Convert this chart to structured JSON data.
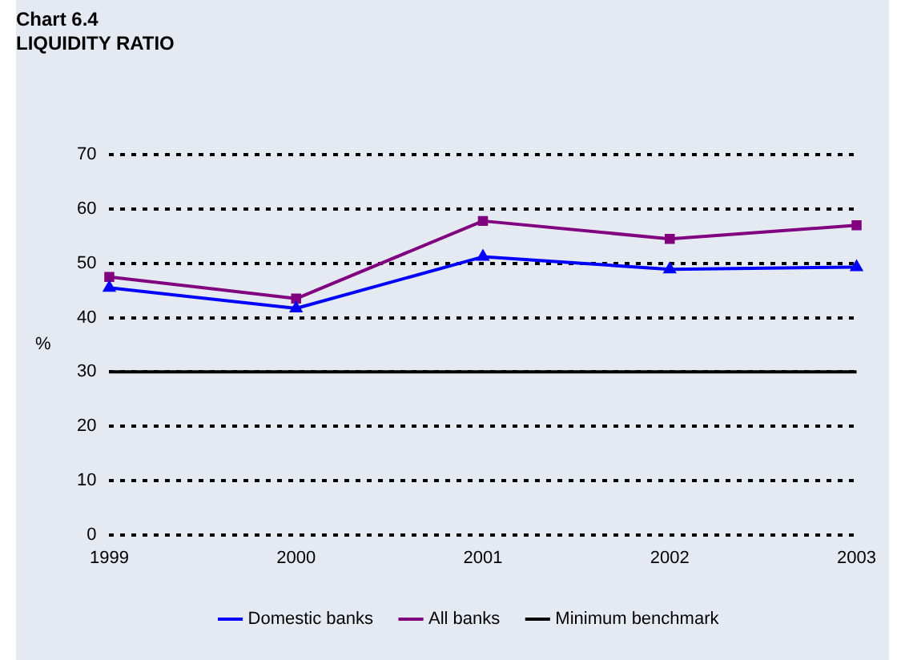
{
  "chart_data": {
    "type": "line",
    "title": "Chart 6.4",
    "subtitle": "LIQUIDITY RATIO",
    "ylabel": "%",
    "categories": [
      "1999",
      "2000",
      "2001",
      "2002",
      "2003"
    ],
    "series": [
      {
        "name": "Domestic banks",
        "color": "#0000ff",
        "marker": "triangle",
        "values": [
          45.5,
          41.7,
          51.2,
          48.9,
          49.3
        ]
      },
      {
        "name": "All banks",
        "color": "#800080",
        "marker": "square",
        "values": [
          47.5,
          43.5,
          57.8,
          54.5,
          57.0
        ]
      },
      {
        "name": "Minimum benchmark",
        "color": "#000000",
        "marker": "none",
        "values": [
          30,
          30,
          30,
          30,
          30
        ]
      }
    ],
    "ylim": [
      0,
      70
    ],
    "yticks": [
      0,
      10,
      20,
      30,
      40,
      50,
      60,
      70
    ],
    "grid": "y",
    "legend": "bottom",
    "line_style": "solid"
  }
}
